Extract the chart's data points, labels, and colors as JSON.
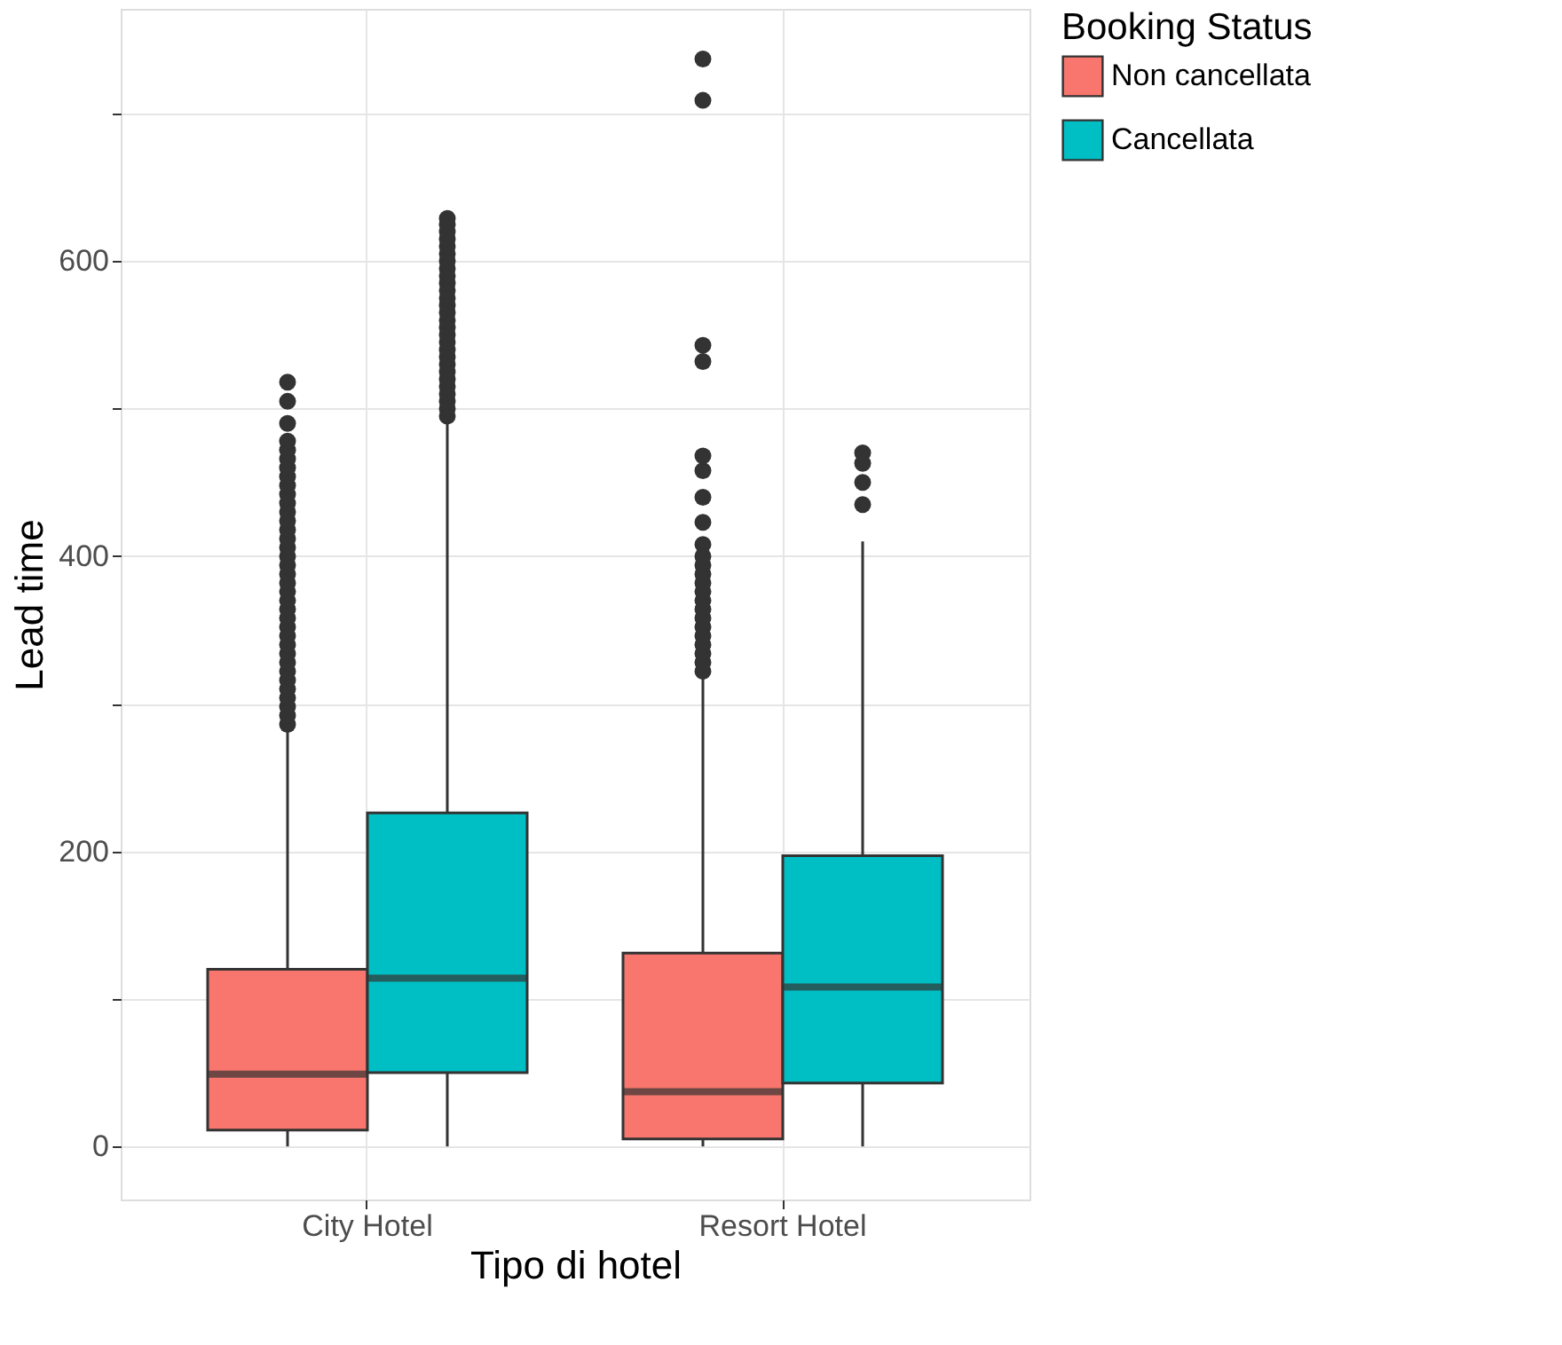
{
  "chart_data": {
    "type": "box",
    "xlabel": "Tipo di hotel",
    "ylabel": "Lead time",
    "legend_title": "Booking Status",
    "categories": [
      "City Hotel",
      "Resort Hotel"
    ],
    "ylim": [
      -36,
      771
    ],
    "yticks": [
      0,
      {
        "value": 100,
        "label": null
      },
      200,
      {
        "value": 300,
        "label": null
      },
      400,
      {
        "value": 500,
        "label": null
      },
      600,
      {
        "value": 700,
        "label": null
      }
    ],
    "grid": true,
    "legend": "right",
    "series": [
      {
        "name": "Non cancellata",
        "color": "#f8766d",
        "boxes": [
          {
            "low": 0,
            "q1": 11,
            "median": 49,
            "q3": 120,
            "high": 283,
            "outliers": [
              286,
              292,
              298,
              304,
              310,
              316,
              322,
              328,
              334,
              340,
              346,
              352,
              358,
              364,
              370,
              376,
              382,
              388,
              394,
              400,
              406,
              412,
              418,
              424,
              430,
              436,
              442,
              448,
              454,
              460,
              466,
              472,
              478,
              490,
              505,
              518
            ]
          },
          {
            "low": 0,
            "q1": 5,
            "median": 37,
            "q3": 131,
            "high": 320,
            "outliers": [
              322,
              328,
              334,
              340,
              346,
              352,
              358,
              364,
              370,
              376,
              382,
              388,
              394,
              400,
              408,
              423,
              440,
              458,
              468,
              532,
              543,
              709,
              737
            ]
          }
        ]
      },
      {
        "name": "Cancellata",
        "color": "#00bfc4",
        "boxes": [
          {
            "low": 0,
            "q1": 50,
            "median": 114,
            "q3": 226,
            "high": 490,
            "outliers": [
              495,
              500,
              505,
              510,
              515,
              520,
              525,
              530,
              535,
              540,
              545,
              550,
              555,
              560,
              565,
              570,
              575,
              580,
              585,
              590,
              595,
              600,
              605,
              610,
              615,
              620,
              625,
              629
            ]
          },
          {
            "low": 0,
            "q1": 43,
            "median": 108,
            "q3": 197,
            "high": 410,
            "outliers": [
              435,
              450,
              463,
              470
            ]
          }
        ]
      }
    ]
  }
}
